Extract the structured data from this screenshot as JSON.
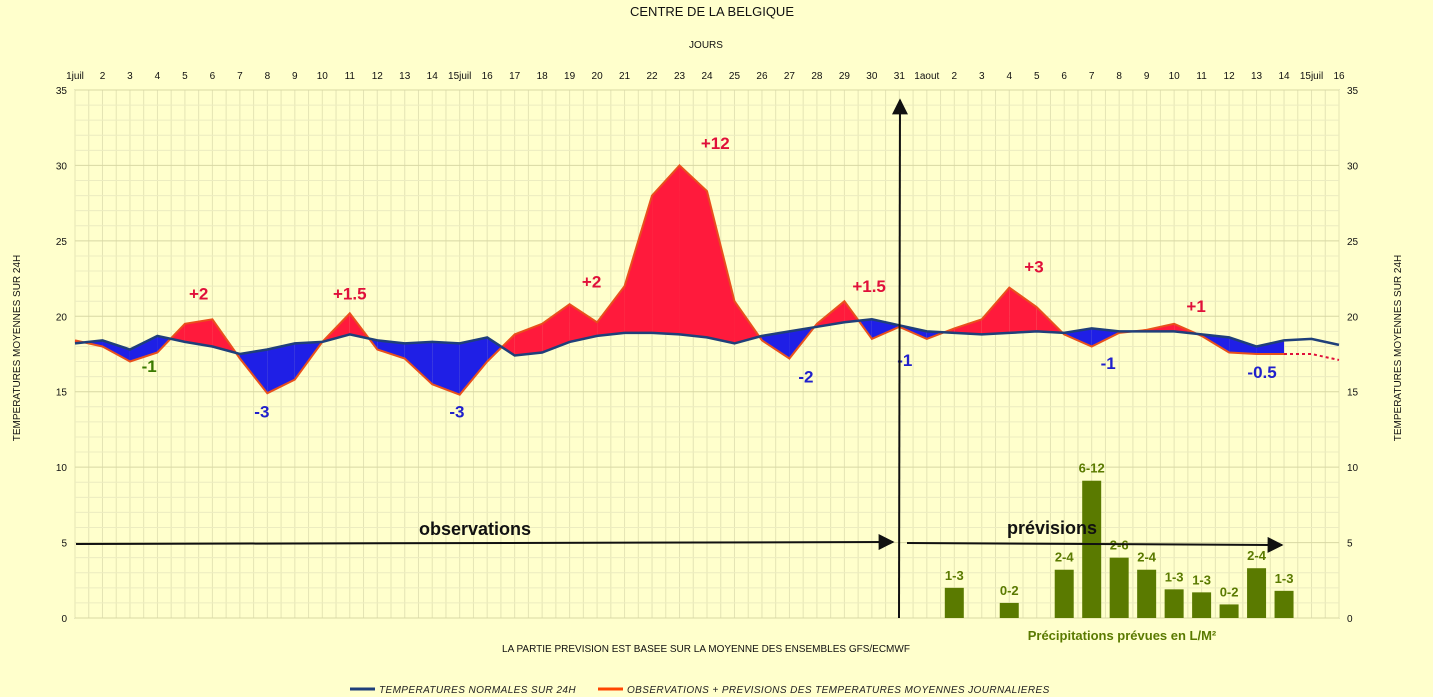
{
  "chart_data": {
    "type": "line",
    "title": "CENTRE DE LA BELGIQUE",
    "xlabel": "JOURS",
    "ylabel": "TEMPERATURES MOYENNES SUR 24H",
    "ylim": [
      0,
      35
    ],
    "y_ticks": [
      0,
      5,
      10,
      15,
      20,
      25,
      30,
      35
    ],
    "grid": true,
    "x_tick_labels": [
      "1juil",
      "2",
      "3",
      "4",
      "5",
      "6",
      "7",
      "8",
      "9",
      "10",
      "11",
      "12",
      "13",
      "14",
      "15juil",
      "16",
      "17",
      "18",
      "19",
      "20",
      "21",
      "22",
      "23",
      "24",
      "25",
      "26",
      "27",
      "28",
      "29",
      "30",
      "31",
      "1aout",
      "2",
      "3",
      "4",
      "5",
      "6",
      "7",
      "8",
      "9",
      "10",
      "11",
      "12",
      "13",
      "14",
      "15juil",
      "16"
    ],
    "note": "LA PARTIE PREVISION EST BASEE SUR LA MOYENNE DES ENSEMBLES GFS/ECMWF",
    "legend_position": "bottom",
    "legend": [
      {
        "label": "TEMPERATURES NORMALES SUR 24H",
        "color": "#1f3f7a"
      },
      {
        "label": "OBSERVATIONS + PREVISIONS DES TEMPERATURES MOYENNES JOURNALIERES",
        "color": "#ff4500"
      }
    ],
    "series": [
      {
        "name": "TEMPERATURES NORMALES SUR 24H",
        "x": [
          0,
          1,
          2,
          3,
          4,
          5,
          6,
          7,
          8,
          9,
          10,
          11,
          12,
          13,
          14,
          15,
          16,
          17,
          18,
          19,
          20,
          21,
          22,
          23,
          24,
          25,
          26,
          27,
          28,
          29,
          30,
          31,
          32,
          33,
          34,
          35,
          36,
          37,
          38,
          39,
          40,
          41,
          42,
          43,
          44,
          45,
          46
        ],
        "values": [
          18.2,
          18.4,
          17.8,
          18.7,
          18.3,
          18.0,
          17.5,
          17.8,
          18.2,
          18.3,
          18.8,
          18.4,
          18.2,
          18.3,
          18.2,
          18.6,
          17.4,
          17.6,
          18.3,
          18.7,
          18.9,
          18.9,
          18.8,
          18.6,
          18.2,
          18.7,
          19.0,
          19.3,
          19.6,
          19.8,
          19.4,
          19.0,
          18.9,
          18.8,
          18.9,
          19.0,
          18.9,
          19.2,
          19.0,
          19.0,
          19.0,
          18.8,
          18.6,
          18.0,
          18.4,
          18.5,
          18.1
        ]
      },
      {
        "name": "OBSERVATIONS + PREVISIONS DES TEMPERATURES MOYENNES JOURNALIERES",
        "x": [
          0,
          1,
          2,
          3,
          4,
          5,
          6,
          7,
          8,
          9,
          10,
          11,
          12,
          13,
          14,
          15,
          16,
          17,
          18,
          19,
          20,
          21,
          22,
          23,
          24,
          25,
          26,
          27,
          28,
          29,
          30,
          31,
          32,
          33,
          34,
          35,
          36,
          37,
          38,
          39,
          40,
          41,
          42,
          43,
          44
        ],
        "values": [
          18.4,
          18.0,
          17.0,
          17.6,
          19.5,
          19.8,
          17.2,
          14.9,
          15.8,
          18.3,
          20.2,
          17.8,
          17.2,
          15.5,
          14.8,
          17.0,
          18.8,
          19.5,
          20.8,
          19.6,
          22.0,
          28.0,
          30.0,
          28.3,
          21.0,
          18.4,
          17.2,
          19.5,
          21.0,
          18.5,
          19.3,
          18.5,
          19.2,
          19.8,
          21.9,
          20.6,
          18.8,
          18.0,
          18.9,
          19.1,
          19.5,
          18.7,
          17.6,
          17.5,
          17.5
        ]
      },
      {
        "name": "prolongation",
        "x": [
          44,
          45,
          46
        ],
        "values": [
          17.5,
          17.5,
          17.1
        ]
      },
      {
        "name": "Précipitations prévues en L/M²",
        "type": "bar",
        "x": [
          32,
          34,
          36,
          37,
          38,
          39,
          40,
          41,
          42,
          43,
          44
        ],
        "values": [
          2.0,
          1.0,
          3.2,
          9.1,
          4.0,
          3.2,
          1.9,
          1.7,
          0.9,
          3.3,
          1.8
        ],
        "labels": [
          "1-3",
          "0-2",
          "2-4",
          "6-12",
          "2-6",
          "2-4",
          "1-3",
          "1-3",
          "0-2",
          "2-4",
          "1-3"
        ]
      }
    ],
    "annotations": [
      {
        "text": "-1",
        "x": 2.7,
        "y": 16.3,
        "color": "#3a7a00"
      },
      {
        "text": "+2",
        "x": 4.5,
        "y": 21.1,
        "color": "#e0103a"
      },
      {
        "text": "-3",
        "x": 6.8,
        "y": 13.3,
        "color": "#2020cc"
      },
      {
        "text": "+1.5",
        "x": 10.0,
        "y": 21.1,
        "color": "#e0103a"
      },
      {
        "text": "-3",
        "x": 13.9,
        "y": 13.3,
        "color": "#2020cc"
      },
      {
        "text": "+2",
        "x": 18.8,
        "y": 21.9,
        "color": "#e0103a"
      },
      {
        "text": "+12",
        "x": 23.3,
        "y": 31.1,
        "color": "#e0103a"
      },
      {
        "text": "-2",
        "x": 26.6,
        "y": 15.6,
        "color": "#2020cc"
      },
      {
        "text": "+1.5",
        "x": 28.9,
        "y": 21.6,
        "color": "#e0103a"
      },
      {
        "text": "-1",
        "x": 30.2,
        "y": 16.7,
        "color": "#2020cc"
      },
      {
        "text": "+3",
        "x": 34.9,
        "y": 22.9,
        "color": "#e0103a"
      },
      {
        "text": "-1",
        "x": 37.6,
        "y": 16.5,
        "color": "#2020cc"
      },
      {
        "text": "+1",
        "x": 40.8,
        "y": 20.3,
        "color": "#e0103a"
      },
      {
        "text": "-0.5",
        "x": 43.2,
        "y": 15.9,
        "color": "#2020cc"
      }
    ],
    "phases": {
      "observations": "observations",
      "previsions": "prévisions",
      "precip_caption": "Précipitations prévues en L/M²"
    }
  }
}
